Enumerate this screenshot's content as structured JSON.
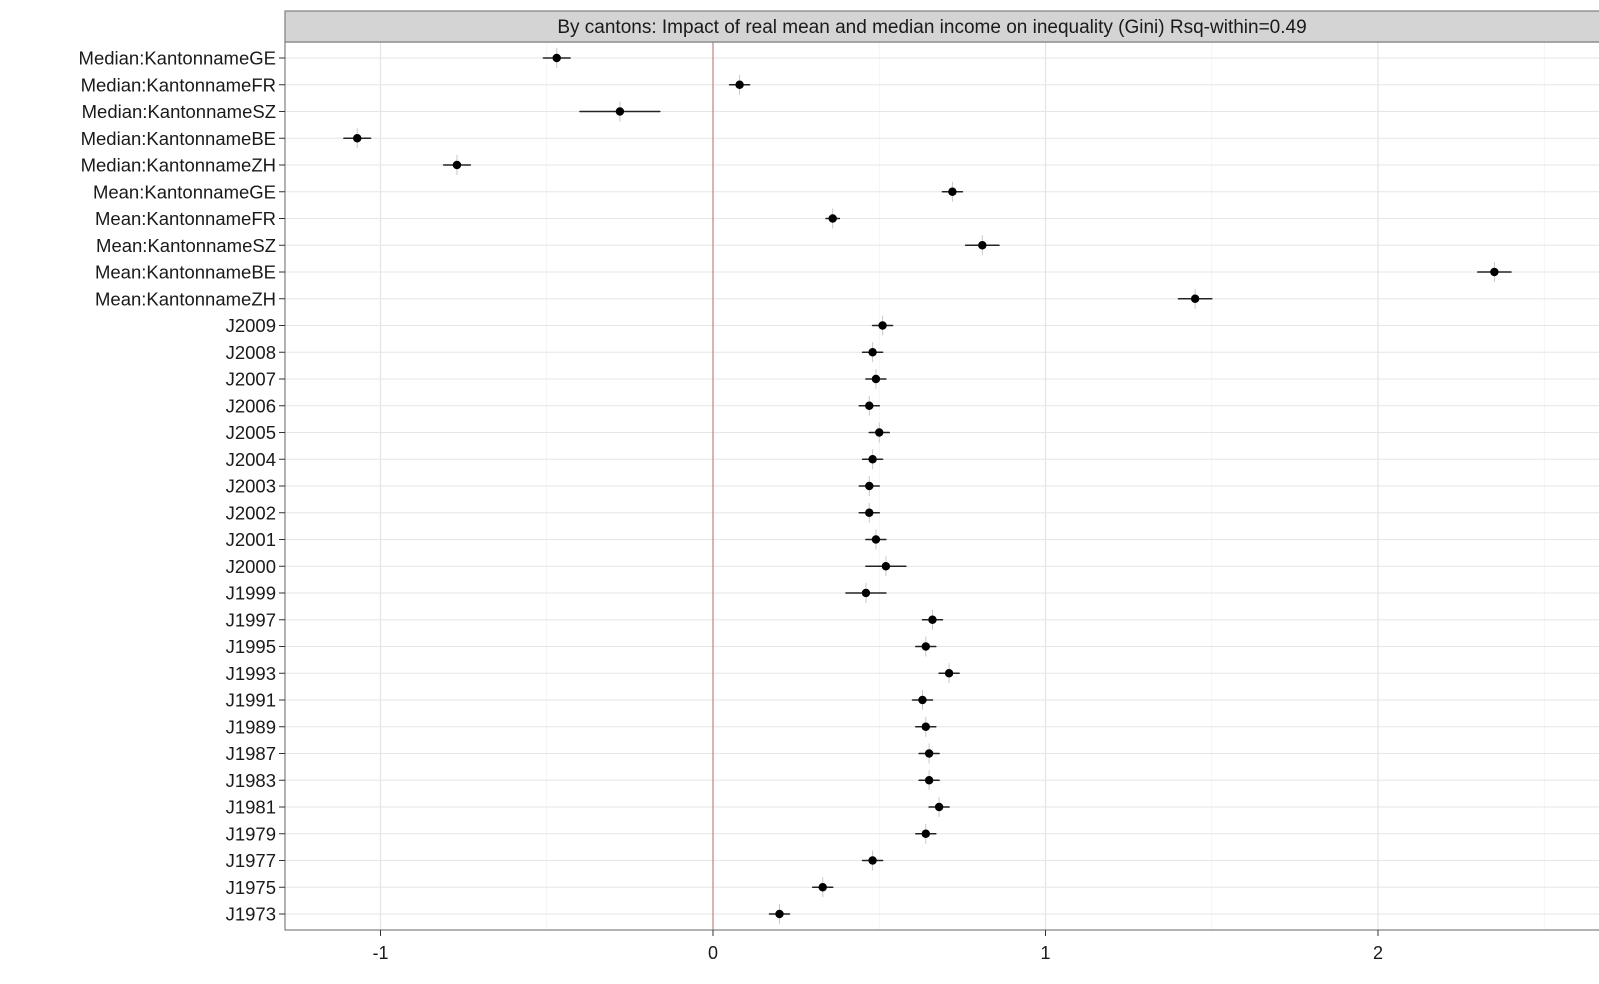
{
  "chart_data": {
    "type": "scatter",
    "title": "By cantons: Impact of real mean and median income on inequality (Gini) Rsq-within=0.49",
    "xlabel": "",
    "ylabel": "",
    "xlim": [
      -1.29,
      2.6
    ],
    "x_ticks": [
      -1,
      0,
      1,
      2
    ],
    "x_tick_labels": [
      "-1",
      "0",
      "1",
      "2"
    ],
    "reference_line_x": 0,
    "grid": true,
    "series": [
      {
        "estimates": [
          {
            "term": "Median:KantonnameGE",
            "value": -0.47,
            "err": 0.04
          },
          {
            "term": "Median:KantonnameFR",
            "value": 0.08,
            "err": 0.03
          },
          {
            "term": "Median:KantonnameSZ",
            "value": -0.28,
            "err": 0.12
          },
          {
            "term": "Median:KantonnameBE",
            "value": -1.07,
            "err": 0.04
          },
          {
            "term": "Median:KantonnameZH",
            "value": -0.77,
            "err": 0.04
          },
          {
            "term": "Mean:KantonnameGE",
            "value": 0.72,
            "err": 0.03
          },
          {
            "term": "Mean:KantonnameFR",
            "value": 0.36,
            "err": 0.02
          },
          {
            "term": "Mean:KantonnameSZ",
            "value": 0.81,
            "err": 0.05
          },
          {
            "term": "Mean:KantonnameBE",
            "value": 2.35,
            "err": 0.05
          },
          {
            "term": "Mean:KantonnameZH",
            "value": 1.45,
            "err": 0.05
          },
          {
            "term": "J2009",
            "value": 0.51,
            "err": 0.03
          },
          {
            "term": "J2008",
            "value": 0.48,
            "err": 0.03
          },
          {
            "term": "J2007",
            "value": 0.49,
            "err": 0.03
          },
          {
            "term": "J2006",
            "value": 0.47,
            "err": 0.03
          },
          {
            "term": "J2005",
            "value": 0.5,
            "err": 0.03
          },
          {
            "term": "J2004",
            "value": 0.48,
            "err": 0.03
          },
          {
            "term": "J2003",
            "value": 0.47,
            "err": 0.03
          },
          {
            "term": "J2002",
            "value": 0.47,
            "err": 0.03
          },
          {
            "term": "J2001",
            "value": 0.49,
            "err": 0.03
          },
          {
            "term": "J2000",
            "value": 0.52,
            "err": 0.06
          },
          {
            "term": "J1999",
            "value": 0.46,
            "err": 0.06
          },
          {
            "term": "J1997",
            "value": 0.66,
            "err": 0.03
          },
          {
            "term": "J1995",
            "value": 0.64,
            "err": 0.03
          },
          {
            "term": "J1993",
            "value": 0.71,
            "err": 0.03
          },
          {
            "term": "J1991",
            "value": 0.63,
            "err": 0.03
          },
          {
            "term": "J1989",
            "value": 0.64,
            "err": 0.03
          },
          {
            "term": "J1987",
            "value": 0.65,
            "err": 0.03
          },
          {
            "term": "J1983",
            "value": 0.65,
            "err": 0.03
          },
          {
            "term": "J1981",
            "value": 0.68,
            "err": 0.03
          },
          {
            "term": "J1979",
            "value": 0.64,
            "err": 0.03
          },
          {
            "term": "J1977",
            "value": 0.48,
            "err": 0.03
          },
          {
            "term": "J1975",
            "value": 0.33,
            "err": 0.03
          },
          {
            "term": "J1973",
            "value": 0.2,
            "err": 0.03
          }
        ]
      }
    ]
  }
}
